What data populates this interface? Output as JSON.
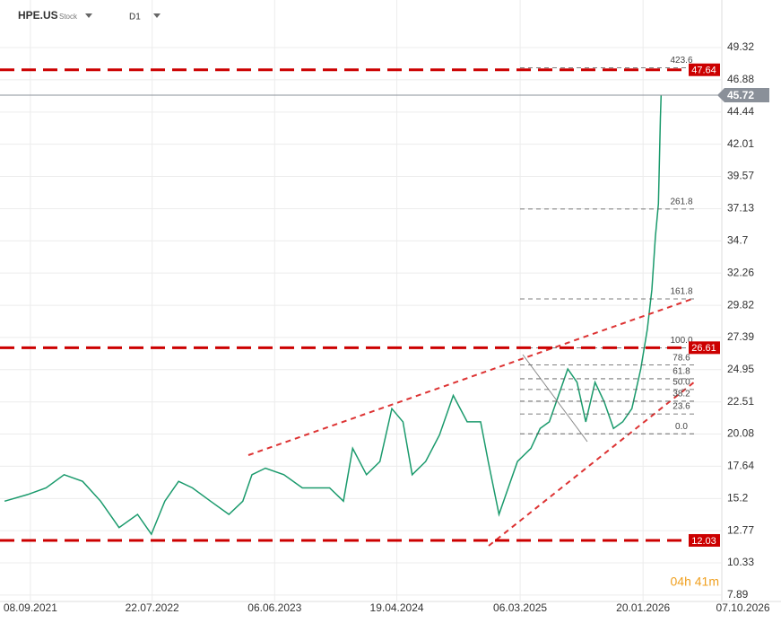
{
  "chart_data": {
    "type": "line",
    "symbol": "HPE.US",
    "asset_type": "Stock",
    "timeframe": "D1",
    "countdown": "04h 41m",
    "x": [
      "03.07.2021",
      "01.09.2021",
      "19.10.2021",
      "05.12.2021",
      "22.01.2022",
      "10.03.2022",
      "27.04.2022",
      "14.06.2022",
      "20.07.2022",
      "24.08.2022",
      "29.09.2022",
      "04.11.2022",
      "21.12.2022",
      "07.02.2023",
      "15.03.2023",
      "08.04.2023",
      "13.05.2023",
      "30.06.2023",
      "17.08.2023",
      "21.09.2023",
      "27.10.2023",
      "02.12.2023",
      "26.12.2023",
      "31.01.2024",
      "06.03.2024",
      "06.04.2024",
      "05.05.2024",
      "29.05.2024",
      "03.07.2024",
      "08.08.2024",
      "13.09.2024",
      "19.10.2024",
      "23.11.2024",
      "13.12.2024",
      "10.01.2025",
      "03.02.2025",
      "27.02.2025",
      "03.04.2025",
      "27.04.2025",
      "21.05.2025",
      "14.06.2025",
      "08.07.2025",
      "01.08.2025",
      "24.08.2025",
      "17.09.2025",
      "11.10.2025",
      "04.11.2025",
      "28.11.2025",
      "22.12.2025",
      "14.01.2026",
      "31.01.2026",
      "12.02.2026",
      "21.02.2026",
      "01.03.2026",
      "06.03.2026",
      "08.03.2026"
    ],
    "series": [
      {
        "color": "#1a9a6c",
        "values": [
          15,
          15.5,
          16,
          17,
          16.5,
          15,
          13,
          14,
          12.5,
          15,
          16.5,
          16,
          15,
          14,
          15,
          17,
          17.5,
          17,
          16,
          16,
          16,
          15,
          19,
          17,
          18,
          22,
          21,
          17,
          18,
          20,
          23,
          21,
          21,
          18,
          14,
          16,
          18,
          19,
          20.5,
          21,
          23,
          25,
          24,
          21,
          24,
          22.5,
          20.5,
          21,
          22,
          25,
          28,
          31,
          35,
          37.5,
          44,
          45.72
        ]
      }
    ],
    "xlim": [
      "21.06.2021",
      "13.08.2026"
    ],
    "xticks": [
      "08.09.2021",
      "22.07.2022",
      "06.06.2023",
      "19.04.2024",
      "06.03.2025",
      "20.01.2026",
      "07.10.2026"
    ],
    "ylim": [
      7.41,
      52.92
    ],
    "yticks": [
      49.32,
      46.88,
      44.44,
      42.01,
      39.57,
      37.13,
      34.7,
      32.26,
      29.82,
      27.39,
      24.95,
      22.51,
      20.08,
      17.64,
      15.2,
      12.77,
      10.33,
      7.89
    ],
    "grid": true,
    "levels": [
      {
        "value": 47.64,
        "color": "#cc0000"
      },
      {
        "value": 26.61,
        "color": "#cc0000"
      },
      {
        "value": 12.03,
        "color": "#cc0000"
      }
    ],
    "current_price": {
      "value": 45.72,
      "color": "#8a9099"
    },
    "fibonacci": [
      {
        "label": "423.6",
        "price": 47.8
      },
      {
        "label": "261.8",
        "price": 37.1
      },
      {
        "label": "161.8",
        "price": 30.3
      },
      {
        "label": "100.0",
        "price": 26.6
      },
      {
        "label": "78.6",
        "price": 25.3
      },
      {
        "label": "61.8",
        "price": 24.26
      },
      {
        "label": "50.0",
        "price": 23.45
      },
      {
        "label": "38.2",
        "price": 22.56
      },
      {
        "label": "23.6",
        "price": 21.6
      },
      {
        "label": "0.0",
        "price": 20.1
      }
    ]
  }
}
